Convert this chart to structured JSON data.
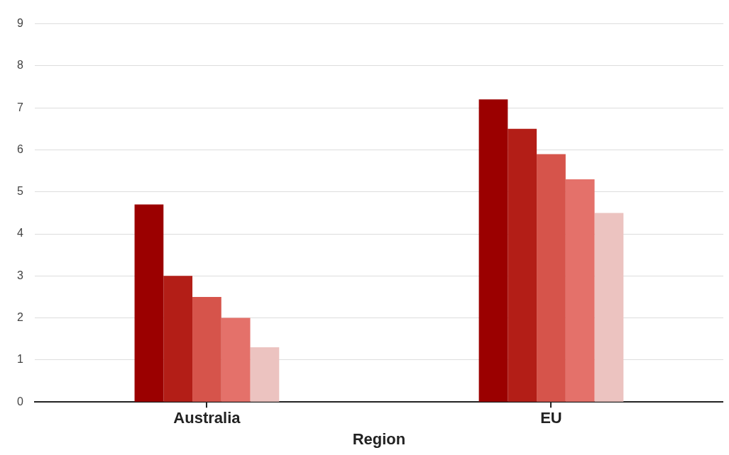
{
  "chart_data": {
    "type": "bar",
    "xlabel": "Region",
    "categories": [
      "Australia",
      "EU"
    ],
    "series": [
      {
        "color": "#9b0000",
        "values": [
          4.7,
          7.2
        ]
      },
      {
        "color": "#b31e17",
        "values": [
          3.0,
          6.5
        ]
      },
      {
        "color": "#d6544b",
        "values": [
          2.5,
          5.9
        ]
      },
      {
        "color": "#e4716a",
        "values": [
          2.0,
          5.3
        ]
      },
      {
        "color": "#ecc3c0",
        "values": [
          1.3,
          4.5
        ]
      }
    ],
    "ylim": [
      0,
      9
    ],
    "yticks": [
      0,
      1,
      2,
      3,
      4,
      5,
      6,
      7,
      8,
      9
    ],
    "grid": "y",
    "legend": false
  }
}
